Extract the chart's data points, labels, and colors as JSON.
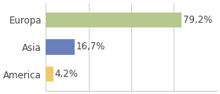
{
  "categories": [
    "America",
    "Asia",
    "Europa"
  ],
  "values": [
    4.2,
    16.7,
    79.2
  ],
  "labels": [
    "4,2%",
    "16,7%",
    "79,2%"
  ],
  "bar_colors": [
    "#f0c96b",
    "#6b7fbf",
    "#b5c98e"
  ],
  "xlim": [
    0,
    100
  ],
  "background_color": "#ffffff",
  "label_fontsize": 8.5,
  "tick_fontsize": 8.5
}
